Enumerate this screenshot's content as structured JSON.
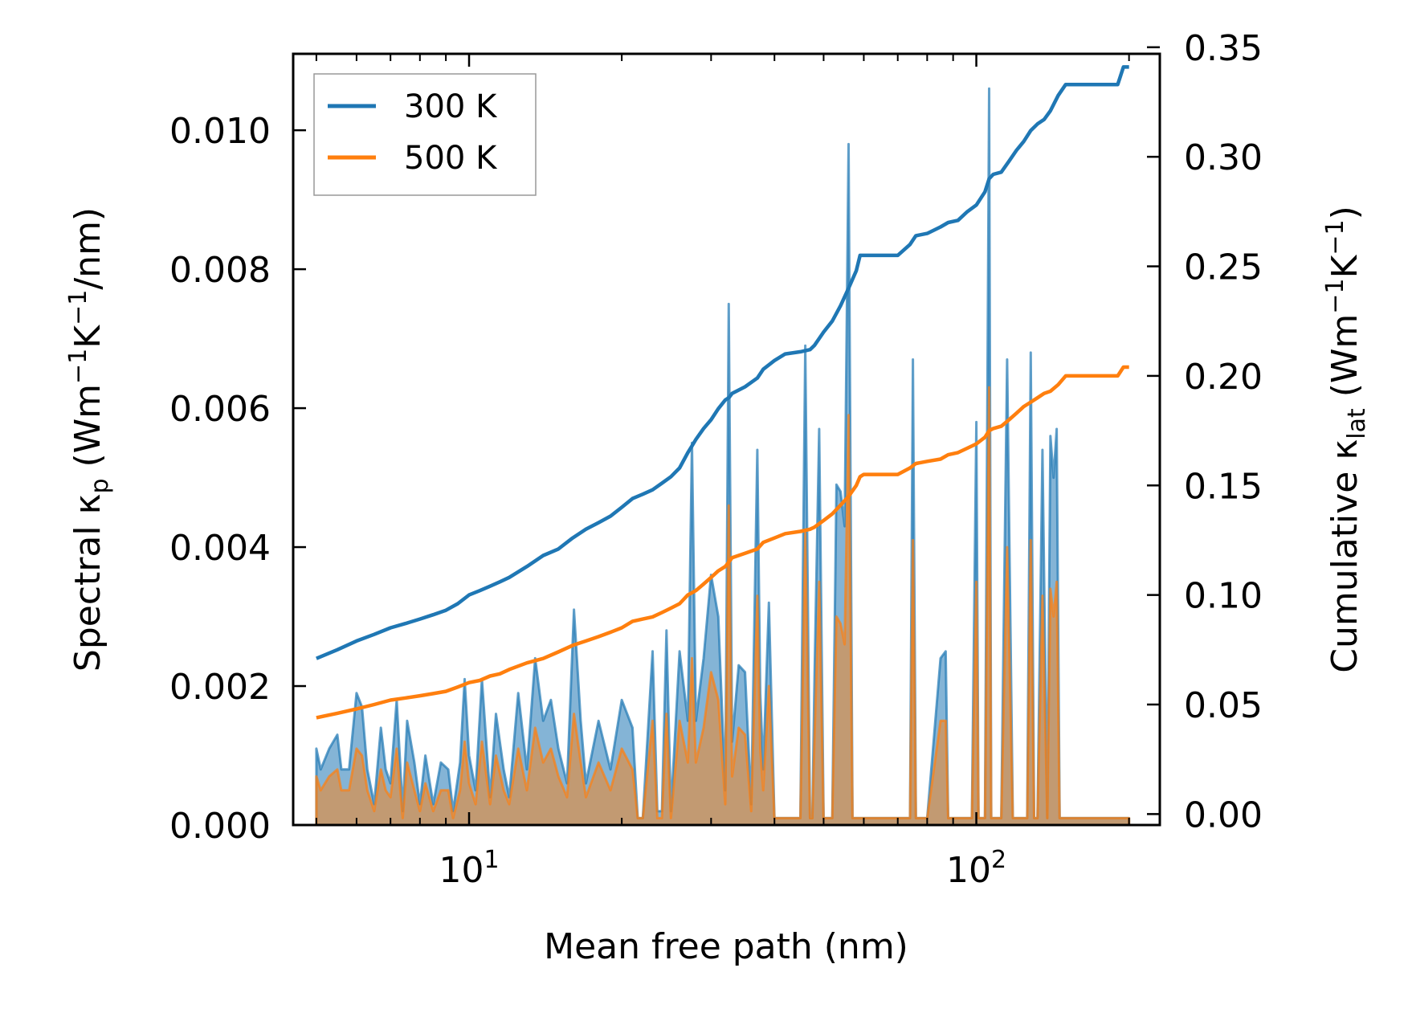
{
  "chart_data": {
    "type": "line",
    "title": "",
    "xlabel": "Mean free path (nm)",
    "ylabel_left_parts": {
      "main": "Spectral κ",
      "sub": "p",
      "unit_open": " (Wm",
      "sup1": "−1",
      "k": "K",
      "sup2": "−1",
      "unit_close": "/nm)"
    },
    "ylabel_right_parts": {
      "main": "Cumulative κ",
      "sub": "lat",
      "unit_open": " (Wm",
      "sup1": "−1",
      "k": "K",
      "sup2": "−1",
      "unit_close": ")"
    },
    "x_scale": "log",
    "xlim": [
      4.5,
      230
    ],
    "ylim_left": [
      0,
      0.0111
    ],
    "ylim_right": [
      -0.005,
      0.347
    ],
    "x_ticks": [
      {
        "value": 10,
        "base": "10",
        "exp": "1"
      },
      {
        "value": 100,
        "base": "10",
        "exp": "2"
      }
    ],
    "y_left_ticks": [
      {
        "value": 0.0,
        "label": "0.000"
      },
      {
        "value": 0.002,
        "label": "0.002"
      },
      {
        "value": 0.004,
        "label": "0.004"
      },
      {
        "value": 0.006,
        "label": "0.006"
      },
      {
        "value": 0.008,
        "label": "0.008"
      },
      {
        "value": 0.01,
        "label": "0.010"
      }
    ],
    "y_right_ticks": [
      {
        "value": 0.0,
        "label": "0.00"
      },
      {
        "value": 0.05,
        "label": "0.05"
      },
      {
        "value": 0.1,
        "label": "0.10"
      },
      {
        "value": 0.15,
        "label": "0.15"
      },
      {
        "value": 0.2,
        "label": "0.20"
      },
      {
        "value": 0.25,
        "label": "0.25"
      },
      {
        "value": 0.3,
        "label": "0.30"
      },
      {
        "value": 0.35,
        "label": "0.35"
      }
    ],
    "legend_position": "top-left",
    "series": [
      {
        "name": "300 K",
        "color": "#1f77b4",
        "spectral": {
          "x": [
            5,
            5.1,
            5.3,
            5.5,
            5.6,
            5.8,
            6,
            6.15,
            6.3,
            6.5,
            6.7,
            6.85,
            7,
            7.2,
            7.4,
            7.55,
            7.8,
            8,
            8.2,
            8.5,
            8.8,
            9.1,
            9.3,
            9.6,
            9.8,
            10,
            10.3,
            10.6,
            11,
            11.3,
            11.7,
            12,
            12.5,
            13,
            13.5,
            14,
            14.5,
            15,
            15.6,
            16.1,
            16.6,
            17,
            18,
            19,
            20,
            21,
            21.5,
            22,
            23,
            23.5,
            24,
            24.5,
            25,
            26,
            27,
            27.5,
            28,
            29,
            30,
            31,
            32,
            32.5,
            33,
            34,
            35,
            36,
            37,
            37.5,
            38,
            39,
            40,
            41,
            42,
            43,
            45,
            46,
            47,
            47.5,
            48,
            49,
            50,
            51,
            52,
            53,
            54,
            55,
            56,
            57,
            57.5,
            58,
            59,
            60,
            63,
            66,
            70,
            74,
            75,
            76,
            78,
            80,
            85,
            87,
            88,
            90,
            92,
            94,
            96,
            98,
            100,
            101,
            102,
            104,
            106,
            107,
            108,
            110,
            112,
            115,
            118,
            120,
            122,
            124,
            126,
            128,
            130,
            132,
            135,
            138,
            140,
            142,
            144,
            146,
            148,
            150,
            152,
            155,
            160,
            170,
            180,
            190,
            193,
            196,
            200
          ],
          "y": [
            0.0011,
            0.0008,
            0.0011,
            0.0013,
            0.0008,
            0.0008,
            0.0019,
            0.0017,
            0.0008,
            0.0003,
            0.0014,
            0.0008,
            0.0006,
            0.0018,
            0.0002,
            0.0015,
            0.0009,
            0.0003,
            0.001,
            0.0003,
            0.0009,
            0.0008,
            0.0002,
            0.0009,
            0.0021,
            0.001,
            0.0005,
            0.0021,
            0.0004,
            0.0016,
            0.0008,
            0.0004,
            0.0019,
            0.0008,
            0.0024,
            0.0015,
            0.0018,
            0.0011,
            0.0006,
            0.0031,
            0.0015,
            0.0006,
            0.0015,
            0.0008,
            0.0018,
            0.0014,
            0.0001,
            0.0001,
            0.0025,
            0.0002,
            0.0002,
            0.0028,
            0.0002,
            0.0025,
            0.0015,
            0.0055,
            0.0015,
            0.0024,
            0.0036,
            0.003,
            0.0005,
            0.0075,
            0.0012,
            0.0023,
            0.0022,
            0.0003,
            0.0054,
            0.0019,
            0.0008,
            0.0032,
            0.0001,
            0.0001,
            0.0001,
            0.0001,
            0.0001,
            0.0069,
            0.0001,
            0.0001,
            0.0022,
            0.0057,
            0.0001,
            0.0001,
            0.0001,
            0.0049,
            0.0048,
            0.0043,
            0.0098,
            0.0001,
            0.0001,
            0.0001,
            0.0001,
            0.0001,
            0.0001,
            0.0001,
            0.0001,
            0.0001,
            0.0067,
            0.0001,
            0.0001,
            0.0001,
            0.0024,
            0.0025,
            0.0001,
            0.0001,
            0.0001,
            0.0001,
            0.0001,
            0.0001,
            0.0058,
            0.0001,
            0.0001,
            0.0001,
            0.0106,
            0.0001,
            0.0001,
            0.0001,
            0.0001,
            0.0067,
            0.0001,
            0.0001,
            0.0001,
            0.0001,
            0.0001,
            0.0068,
            0.0001,
            0.0001,
            0.0054,
            0.0001,
            0.0056,
            0.005,
            0.0057,
            0.0001,
            0.0001,
            0.0001,
            0.0001,
            0.0001,
            0.0001,
            0.0001,
            0.0001,
            0.0001,
            0.0001,
            0.0001,
            0.0001
          ]
        },
        "cumulative": {
          "x": [
            5,
            5.5,
            6,
            6.5,
            7,
            7.5,
            8,
            8.5,
            9,
            9.5,
            10,
            10.5,
            11,
            11.5,
            12,
            13,
            14,
            15,
            16,
            17,
            18,
            19,
            20,
            21,
            22,
            23,
            24,
            25,
            26,
            27,
            27.5,
            28,
            29,
            30,
            31,
            32,
            32.5,
            33,
            35,
            37,
            38,
            40,
            42,
            45,
            47,
            48,
            50,
            52,
            54,
            56,
            58,
            59,
            60,
            65,
            70,
            74,
            76,
            80,
            85,
            88,
            92,
            96,
            100,
            104,
            106,
            108,
            112,
            116,
            120,
            124,
            128,
            132,
            136,
            140,
            145,
            150,
            155,
            160,
            170,
            180,
            190,
            195,
            200
          ],
          "y": [
            0.071,
            0.075,
            0.079,
            0.082,
            0.085,
            0.087,
            0.089,
            0.091,
            0.093,
            0.096,
            0.1,
            0.102,
            0.104,
            0.106,
            0.108,
            0.113,
            0.118,
            0.121,
            0.126,
            0.13,
            0.133,
            0.136,
            0.14,
            0.144,
            0.146,
            0.148,
            0.151,
            0.154,
            0.158,
            0.165,
            0.168,
            0.171,
            0.176,
            0.18,
            0.185,
            0.189,
            0.19,
            0.192,
            0.195,
            0.199,
            0.203,
            0.207,
            0.21,
            0.211,
            0.212,
            0.214,
            0.22,
            0.225,
            0.232,
            0.24,
            0.248,
            0.255,
            0.255,
            0.255,
            0.255,
            0.26,
            0.264,
            0.265,
            0.268,
            0.27,
            0.271,
            0.275,
            0.278,
            0.284,
            0.29,
            0.292,
            0.293,
            0.298,
            0.303,
            0.307,
            0.312,
            0.315,
            0.317,
            0.321,
            0.328,
            0.333,
            0.333,
            0.333,
            0.333,
            0.333,
            0.333,
            0.341,
            0.341
          ]
        }
      },
      {
        "name": "500 K",
        "color": "#ff7f0e",
        "spectral": {
          "x": [
            5,
            5.1,
            5.3,
            5.5,
            5.6,
            5.8,
            6,
            6.15,
            6.3,
            6.5,
            6.7,
            6.85,
            7,
            7.2,
            7.4,
            7.55,
            7.8,
            8,
            8.2,
            8.5,
            8.8,
            9.1,
            9.3,
            9.6,
            9.8,
            10,
            10.3,
            10.6,
            11,
            11.3,
            11.7,
            12,
            12.5,
            13,
            13.5,
            14,
            14.5,
            15,
            15.6,
            16.1,
            16.6,
            17,
            18,
            19,
            20,
            21,
            21.5,
            22,
            23,
            23.5,
            24,
            24.5,
            25,
            26,
            27,
            27.5,
            28,
            29,
            30,
            31,
            32,
            32.5,
            33,
            34,
            35,
            36,
            37,
            37.5,
            38,
            39,
            40,
            41,
            42,
            43,
            45,
            46,
            47,
            47.5,
            48,
            49,
            50,
            51,
            52,
            53,
            54,
            55,
            56,
            57,
            57.5,
            58,
            59,
            60,
            63,
            66,
            70,
            74,
            75,
            76,
            78,
            80,
            85,
            87,
            88,
            90,
            92,
            94,
            96,
            98,
            100,
            101,
            102,
            104,
            106,
            107,
            108,
            110,
            112,
            115,
            118,
            120,
            122,
            124,
            126,
            128,
            130,
            132,
            135,
            138,
            140,
            142,
            144,
            146,
            148,
            150,
            152,
            155,
            160,
            170,
            180,
            190,
            193,
            196,
            200
          ],
          "y": [
            0.0007,
            0.0005,
            0.0007,
            0.0008,
            0.0005,
            0.0005,
            0.0011,
            0.001,
            0.0005,
            0.0002,
            0.0008,
            0.0005,
            0.0004,
            0.0011,
            0.0001,
            0.0009,
            0.0005,
            0.0002,
            0.0006,
            0.0002,
            0.0005,
            0.0005,
            0.0001,
            0.0005,
            0.0012,
            0.0006,
            0.0003,
            0.0012,
            0.0003,
            0.001,
            0.0005,
            0.0003,
            0.0011,
            0.0005,
            0.0014,
            0.0009,
            0.0011,
            0.0007,
            0.0004,
            0.0016,
            0.0009,
            0.0004,
            0.0009,
            0.0005,
            0.0011,
            0.0008,
            0.0001,
            0.0001,
            0.0015,
            0.0001,
            0.0001,
            0.0016,
            0.0001,
            0.0015,
            0.0009,
            0.0024,
            0.0009,
            0.0014,
            0.0022,
            0.0018,
            0.0003,
            0.0046,
            0.0007,
            0.0014,
            0.0013,
            0.0002,
            0.0033,
            0.0011,
            0.0005,
            0.002,
            0.0001,
            0.0001,
            0.0001,
            0.0001,
            0.0001,
            0.0042,
            0.0001,
            0.0001,
            0.0013,
            0.0035,
            0.0001,
            0.0001,
            0.0001,
            0.003,
            0.0029,
            0.0026,
            0.0059,
            0.0001,
            0.0001,
            0.0001,
            0.0001,
            0.0001,
            0.0001,
            0.0001,
            0.0001,
            0.0001,
            0.0041,
            0.0001,
            0.0001,
            0.0001,
            0.0015,
            0.0015,
            0.0001,
            0.0001,
            0.0001,
            0.0001,
            0.0001,
            0.0001,
            0.0035,
            0.0001,
            0.0001,
            0.0001,
            0.0063,
            0.0001,
            0.0001,
            0.0001,
            0.0001,
            0.004,
            0.0001,
            0.0001,
            0.0001,
            0.0001,
            0.0001,
            0.0041,
            0.0001,
            0.0001,
            0.0033,
            0.0001,
            0.0034,
            0.003,
            0.0035,
            0.0001,
            0.0001,
            0.0001,
            0.0001,
            0.0001,
            0.0001,
            0.0001,
            0.0001,
            0.0001,
            0.0001,
            0.0001,
            0.0001
          ]
        },
        "cumulative": {
          "x": [
            5,
            5.5,
            6,
            6.5,
            7,
            7.5,
            8,
            8.5,
            9,
            9.5,
            10,
            10.5,
            11,
            11.5,
            12,
            13,
            14,
            15,
            16,
            17,
            18,
            19,
            20,
            21,
            22,
            23,
            24,
            25,
            26,
            27,
            28,
            29,
            30,
            31,
            32,
            33,
            35,
            37,
            38,
            40,
            42,
            45,
            47,
            48,
            50,
            52,
            54,
            56,
            58,
            59,
            60,
            65,
            70,
            74,
            76,
            80,
            85,
            88,
            92,
            96,
            100,
            104,
            106,
            108,
            112,
            116,
            120,
            124,
            128,
            132,
            136,
            140,
            145,
            150,
            155,
            160,
            170,
            180,
            190,
            195,
            200
          ],
          "y": [
            0.044,
            0.046,
            0.048,
            0.05,
            0.052,
            0.053,
            0.054,
            0.055,
            0.056,
            0.058,
            0.06,
            0.061,
            0.063,
            0.064,
            0.066,
            0.069,
            0.071,
            0.074,
            0.077,
            0.079,
            0.081,
            0.083,
            0.085,
            0.088,
            0.089,
            0.09,
            0.092,
            0.094,
            0.096,
            0.1,
            0.102,
            0.105,
            0.108,
            0.111,
            0.113,
            0.117,
            0.119,
            0.121,
            0.124,
            0.126,
            0.128,
            0.129,
            0.13,
            0.131,
            0.134,
            0.137,
            0.141,
            0.145,
            0.15,
            0.154,
            0.155,
            0.155,
            0.155,
            0.158,
            0.16,
            0.161,
            0.162,
            0.164,
            0.165,
            0.167,
            0.169,
            0.172,
            0.175,
            0.176,
            0.177,
            0.18,
            0.183,
            0.186,
            0.188,
            0.19,
            0.192,
            0.193,
            0.196,
            0.2,
            0.2,
            0.2,
            0.2,
            0.2,
            0.2,
            0.204,
            0.204
          ]
        }
      }
    ]
  }
}
